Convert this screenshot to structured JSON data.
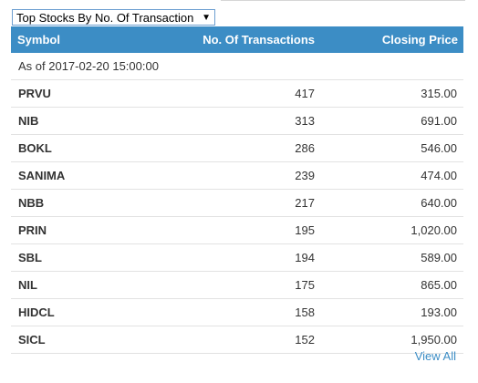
{
  "dropdown": {
    "selected": "Top Stocks By No. Of Transaction",
    "arrow_icon": "caret-down-icon"
  },
  "table": {
    "headers": {
      "symbol": "Symbol",
      "transactions": "No. Of Transactions",
      "price": "Closing Price"
    },
    "as_of": "As of 2017-02-20 15:00:00",
    "rows": [
      {
        "symbol": "PRVU",
        "transactions": "417",
        "price": "315.00"
      },
      {
        "symbol": "NIB",
        "transactions": "313",
        "price": "691.00"
      },
      {
        "symbol": "BOKL",
        "transactions": "286",
        "price": "546.00"
      },
      {
        "symbol": "SANIMA",
        "transactions": "239",
        "price": "474.00"
      },
      {
        "symbol": "NBB",
        "transactions": "217",
        "price": "640.00"
      },
      {
        "symbol": "PRIN",
        "transactions": "195",
        "price": "1,020.00"
      },
      {
        "symbol": "SBL",
        "transactions": "194",
        "price": "589.00"
      },
      {
        "symbol": "NIL",
        "transactions": "175",
        "price": "865.00"
      },
      {
        "symbol": "HIDCL",
        "transactions": "158",
        "price": "193.00"
      },
      {
        "symbol": "SICL",
        "transactions": "152",
        "price": "1,950.00"
      }
    ]
  },
  "footer": {
    "view_all": "View All"
  },
  "colors": {
    "header_bg": "#3c8dc5",
    "link": "#3c8dc5",
    "row_border": "#e2e2e2"
  }
}
